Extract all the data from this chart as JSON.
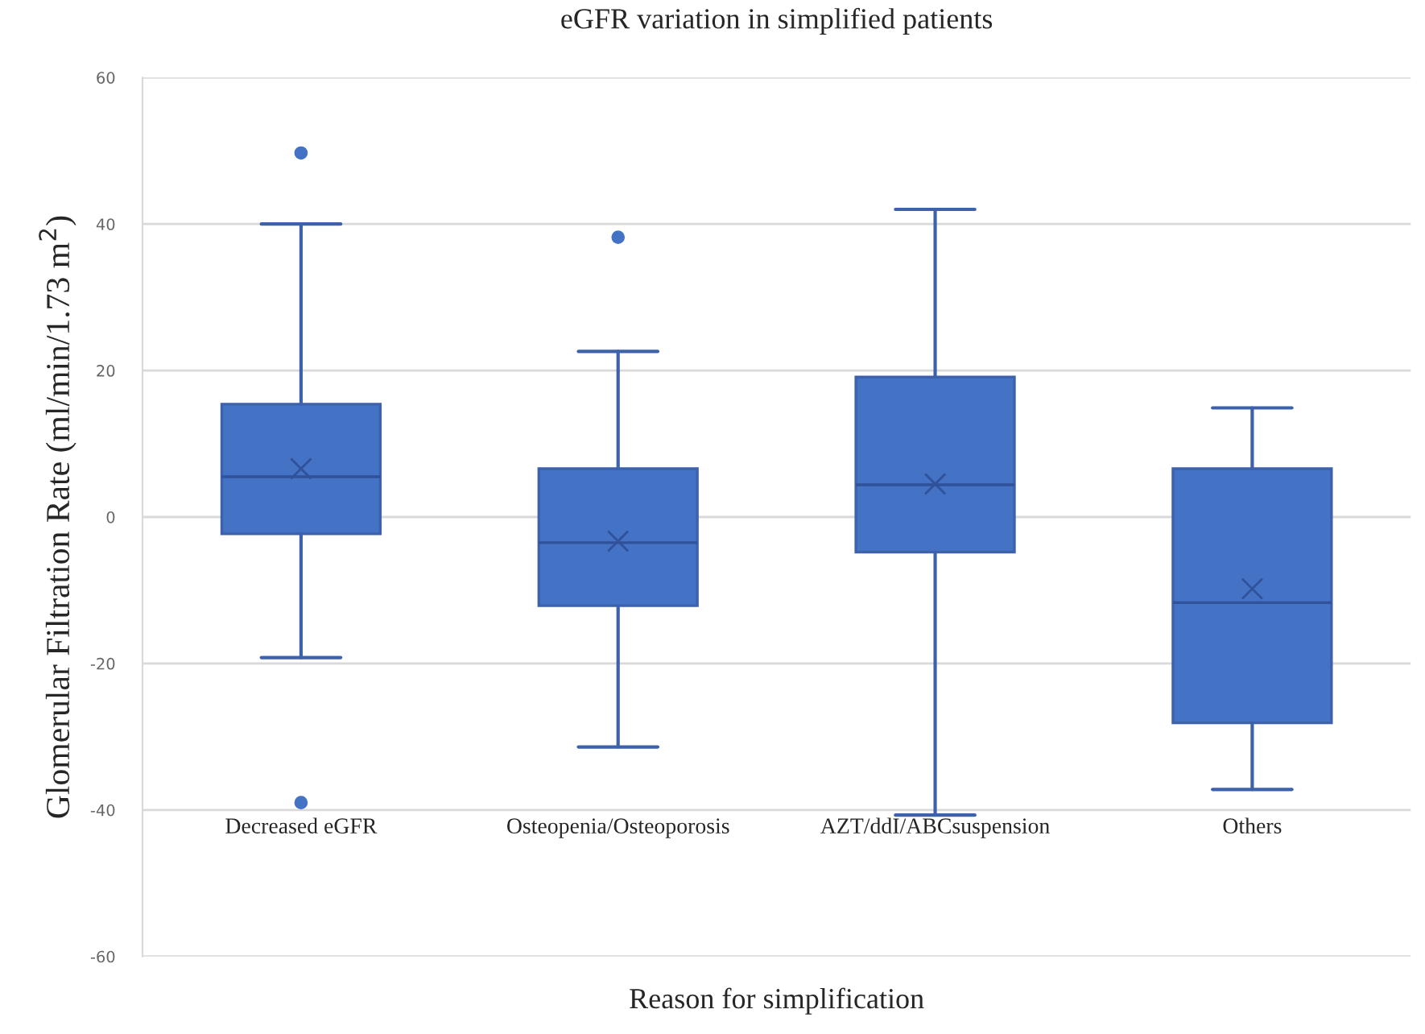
{
  "chart_data": {
    "type": "box",
    "title": "eGFR variation in simplified patients",
    "xlabel": "Reason for simplification",
    "ylabel": "Glomerular Filtration Rate (ml/min/1.73 m$^{2}$)",
    "categories": [
      "Decreased eGFR",
      "Osteopenia/Osteoporosis",
      "AZT/ddI/ABCsuspension",
      "Others"
    ],
    "boxes": [
      {
        "low": -19.2,
        "q1": -2.3,
        "median": 5.5,
        "q3": 15.4,
        "high": 40,
        "mean": 6.6,
        "outliers": [
          49.7,
          -39
        ]
      },
      {
        "low": -31.4,
        "q1": -12.1,
        "median": -3.5,
        "q3": 6.6,
        "high": 22.6,
        "mean": -3.3,
        "outliers": [
          38.2
        ]
      },
      {
        "low": -40.7,
        "q1": -4.8,
        "median": 4.4,
        "q3": 19.1,
        "high": 42,
        "mean": 4.5
      },
      {
        "low": -37.2,
        "q1": -28.1,
        "median": -11.7,
        "q3": 6.6,
        "high": 14.9,
        "mean": -9.8
      }
    ],
    "color": "#4472c4",
    "ylim": [
      -60,
      60
    ],
    "yticks": [
      -60,
      -40,
      -20,
      0,
      20,
      40,
      60
    ],
    "grid": "y",
    "marker": "cross"
  }
}
